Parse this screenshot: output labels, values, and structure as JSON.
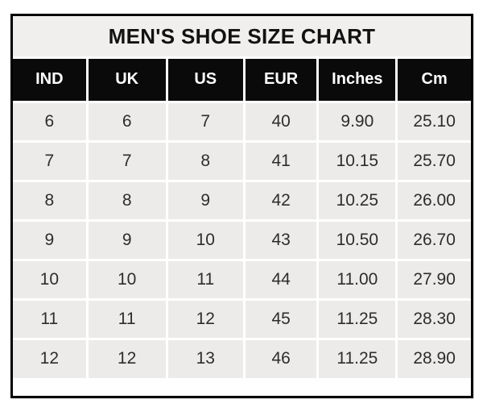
{
  "chart_data": {
    "type": "table",
    "title": "MEN'S SHOE SIZE CHART",
    "columns": [
      "IND",
      "UK",
      "US",
      "EUR",
      "Inches",
      "Cm"
    ],
    "rows": [
      [
        "6",
        "6",
        "7",
        "40",
        "9.90",
        "25.10"
      ],
      [
        "7",
        "7",
        "8",
        "41",
        "10.15",
        "25.70"
      ],
      [
        "8",
        "8",
        "9",
        "42",
        "10.25",
        "26.00"
      ],
      [
        "9",
        "9",
        "10",
        "43",
        "10.50",
        "26.70"
      ],
      [
        "10",
        "10",
        "11",
        "44",
        "11.00",
        "27.90"
      ],
      [
        "11",
        "11",
        "12",
        "45",
        "11.25",
        "28.30"
      ],
      [
        "12",
        "12",
        "13",
        "46",
        "11.25",
        "28.90"
      ]
    ],
    "layout": {
      "header_position": "top",
      "grid": "white gridlines between cells",
      "title_position": "top-center"
    }
  },
  "colors": {
    "page_bg": "#ffffff",
    "border": "#000000",
    "title_bg": "#f0efed",
    "header_bg": "#0a0a0a",
    "header_text": "#ffffff",
    "cell_bg": "#ecebe9",
    "cell_text": "#2e2d2c",
    "grid": "#ffffff"
  }
}
